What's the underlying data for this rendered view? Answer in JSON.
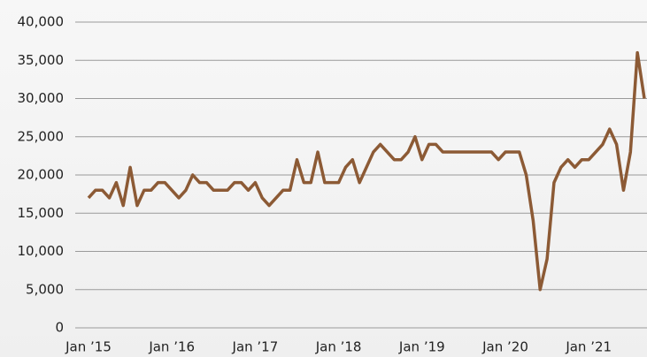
{
  "chart_data": {
    "type": "line",
    "categories": [
      "Jan ’15",
      null,
      null,
      null,
      null,
      null,
      null,
      null,
      null,
      null,
      null,
      null,
      "Jan ’16",
      null,
      null,
      null,
      null,
      null,
      null,
      null,
      null,
      null,
      null,
      null,
      "Jan ’17",
      null,
      null,
      null,
      null,
      null,
      null,
      null,
      null,
      null,
      null,
      null,
      "Jan ’18",
      null,
      null,
      null,
      null,
      null,
      null,
      null,
      null,
      null,
      null,
      null,
      "Jan ’19",
      null,
      null,
      null,
      null,
      null,
      null,
      null,
      null,
      null,
      null,
      null,
      "Jan ’20",
      null,
      null,
      null,
      null,
      null,
      null,
      null,
      null,
      null,
      null,
      null,
      "Jan ’21",
      null,
      null,
      null,
      null,
      null,
      null,
      null,
      null
    ],
    "series": [
      {
        "color": "#8c5a35",
        "values": [
          17000,
          18000,
          18000,
          17000,
          19000,
          16000,
          21000,
          16000,
          18000,
          18000,
          19000,
          19000,
          18000,
          17000,
          18000,
          20000,
          19000,
          19000,
          18000,
          18000,
          18000,
          19000,
          19000,
          18000,
          19000,
          17000,
          16000,
          17000,
          18000,
          18000,
          22000,
          19000,
          19000,
          23000,
          19000,
          19000,
          19000,
          21000,
          22000,
          19000,
          21000,
          23000,
          24000,
          23000,
          22000,
          22000,
          23000,
          25000,
          22000,
          24000,
          24000,
          23000,
          23000,
          23000,
          23000,
          23000,
          23000,
          23000,
          23000,
          22000,
          23000,
          23000,
          23000,
          20000,
          14000,
          5000,
          9000,
          19000,
          21000,
          22000,
          21000,
          22000,
          22000,
          23000,
          24000,
          26000,
          24000,
          18000,
          23000,
          36000,
          30000
        ]
      }
    ],
    "ylim": [
      0,
      40000
    ],
    "yticks": [
      0,
      {
        "value": 5000,
        "label": "5,000"
      },
      {
        "value": 10000,
        "label": "10,000"
      },
      {
        "value": 15000,
        "label": "15,000"
      },
      {
        "value": 20000,
        "label": "20,000"
      },
      {
        "value": 25000,
        "label": "25,000"
      },
      {
        "value": 30000,
        "label": "30,000"
      },
      {
        "value": 35000,
        "label": "35,000"
      },
      {
        "value": 40000,
        "label": "40,000"
      }
    ],
    "grid": true
  }
}
